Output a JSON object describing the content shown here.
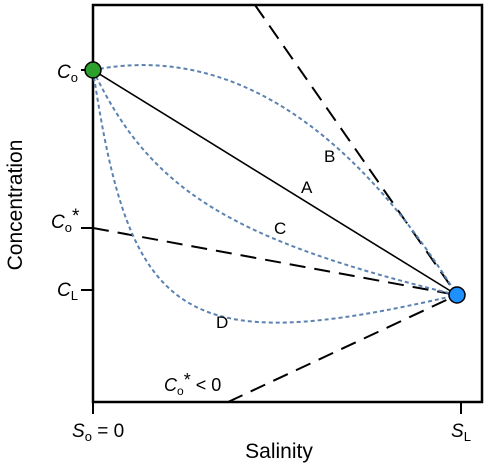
{
  "axes": {
    "x_title": "Salinity",
    "y_title": "Concentration"
  },
  "y_ticks": {
    "c0": {
      "symbol": "C",
      "sub": "o"
    },
    "c0_star": {
      "symbol": "C",
      "sub": "o",
      "sup": "*"
    },
    "cl": {
      "symbol": "C",
      "sub": "L"
    }
  },
  "x_ticks": {
    "s0": {
      "symbol": "S",
      "sub": "o",
      "suffix": " = 0"
    },
    "sl": {
      "symbol": "S",
      "sub": "L"
    }
  },
  "curves": {
    "A": "A",
    "B": "B",
    "C": "C",
    "D": "D"
  },
  "annotation": {
    "symbol": "C",
    "sub": "o",
    "sup": "*",
    "suffix": " < 0"
  },
  "colors": {
    "endmember_fresh": "#2ca02c",
    "endmember_saline": "#1e90ff",
    "dashed_curves": "#5b82b0"
  }
}
